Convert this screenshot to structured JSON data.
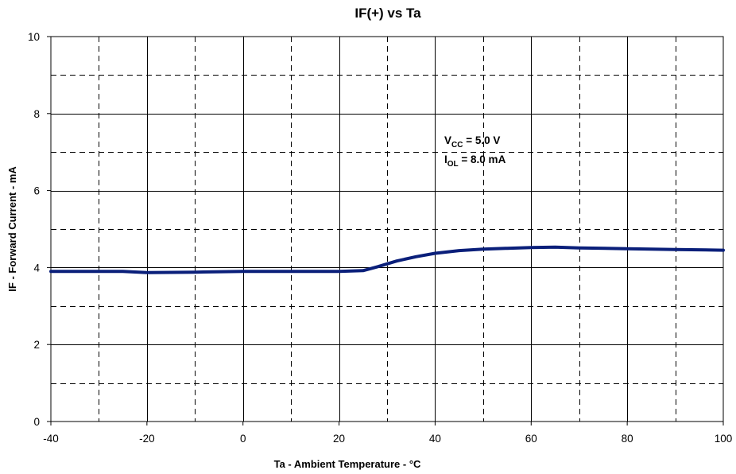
{
  "chart_data": {
    "type": "line",
    "title": "IF(+) vs Ta",
    "xlabel": "Ta - Ambient Temperature - °C",
    "ylabel": "IF - Forward Current - mA",
    "xlim": [
      -40,
      100
    ],
    "ylim": [
      0,
      10
    ],
    "x_ticks": [
      -40,
      -20,
      0,
      20,
      40,
      60,
      80,
      100
    ],
    "y_ticks": [
      0,
      2,
      4,
      6,
      8,
      10
    ],
    "x_minor_step": 10,
    "y_minor_step": 1,
    "grid": true,
    "legend": "none",
    "line_color": "#0a1f7a",
    "series": [
      {
        "x": [
          -40,
          -30,
          -25,
          -20,
          -10,
          0,
          10,
          20,
          25,
          28,
          32,
          36,
          40,
          45,
          50,
          55,
          60,
          65,
          70,
          80,
          90,
          100
        ],
        "values": [
          3.9,
          3.9,
          3.9,
          3.87,
          3.88,
          3.9,
          3.9,
          3.9,
          3.92,
          4.02,
          4.17,
          4.28,
          4.37,
          4.44,
          4.48,
          4.5,
          4.52,
          4.53,
          4.51,
          4.49,
          4.47,
          4.45
        ]
      }
    ],
    "annotations": [
      {
        "main": "V",
        "sub": "CC",
        "rest": " = 5.0 V"
      },
      {
        "main": "I",
        "sub": "OL",
        "rest": " = 8.0 mA"
      }
    ]
  }
}
